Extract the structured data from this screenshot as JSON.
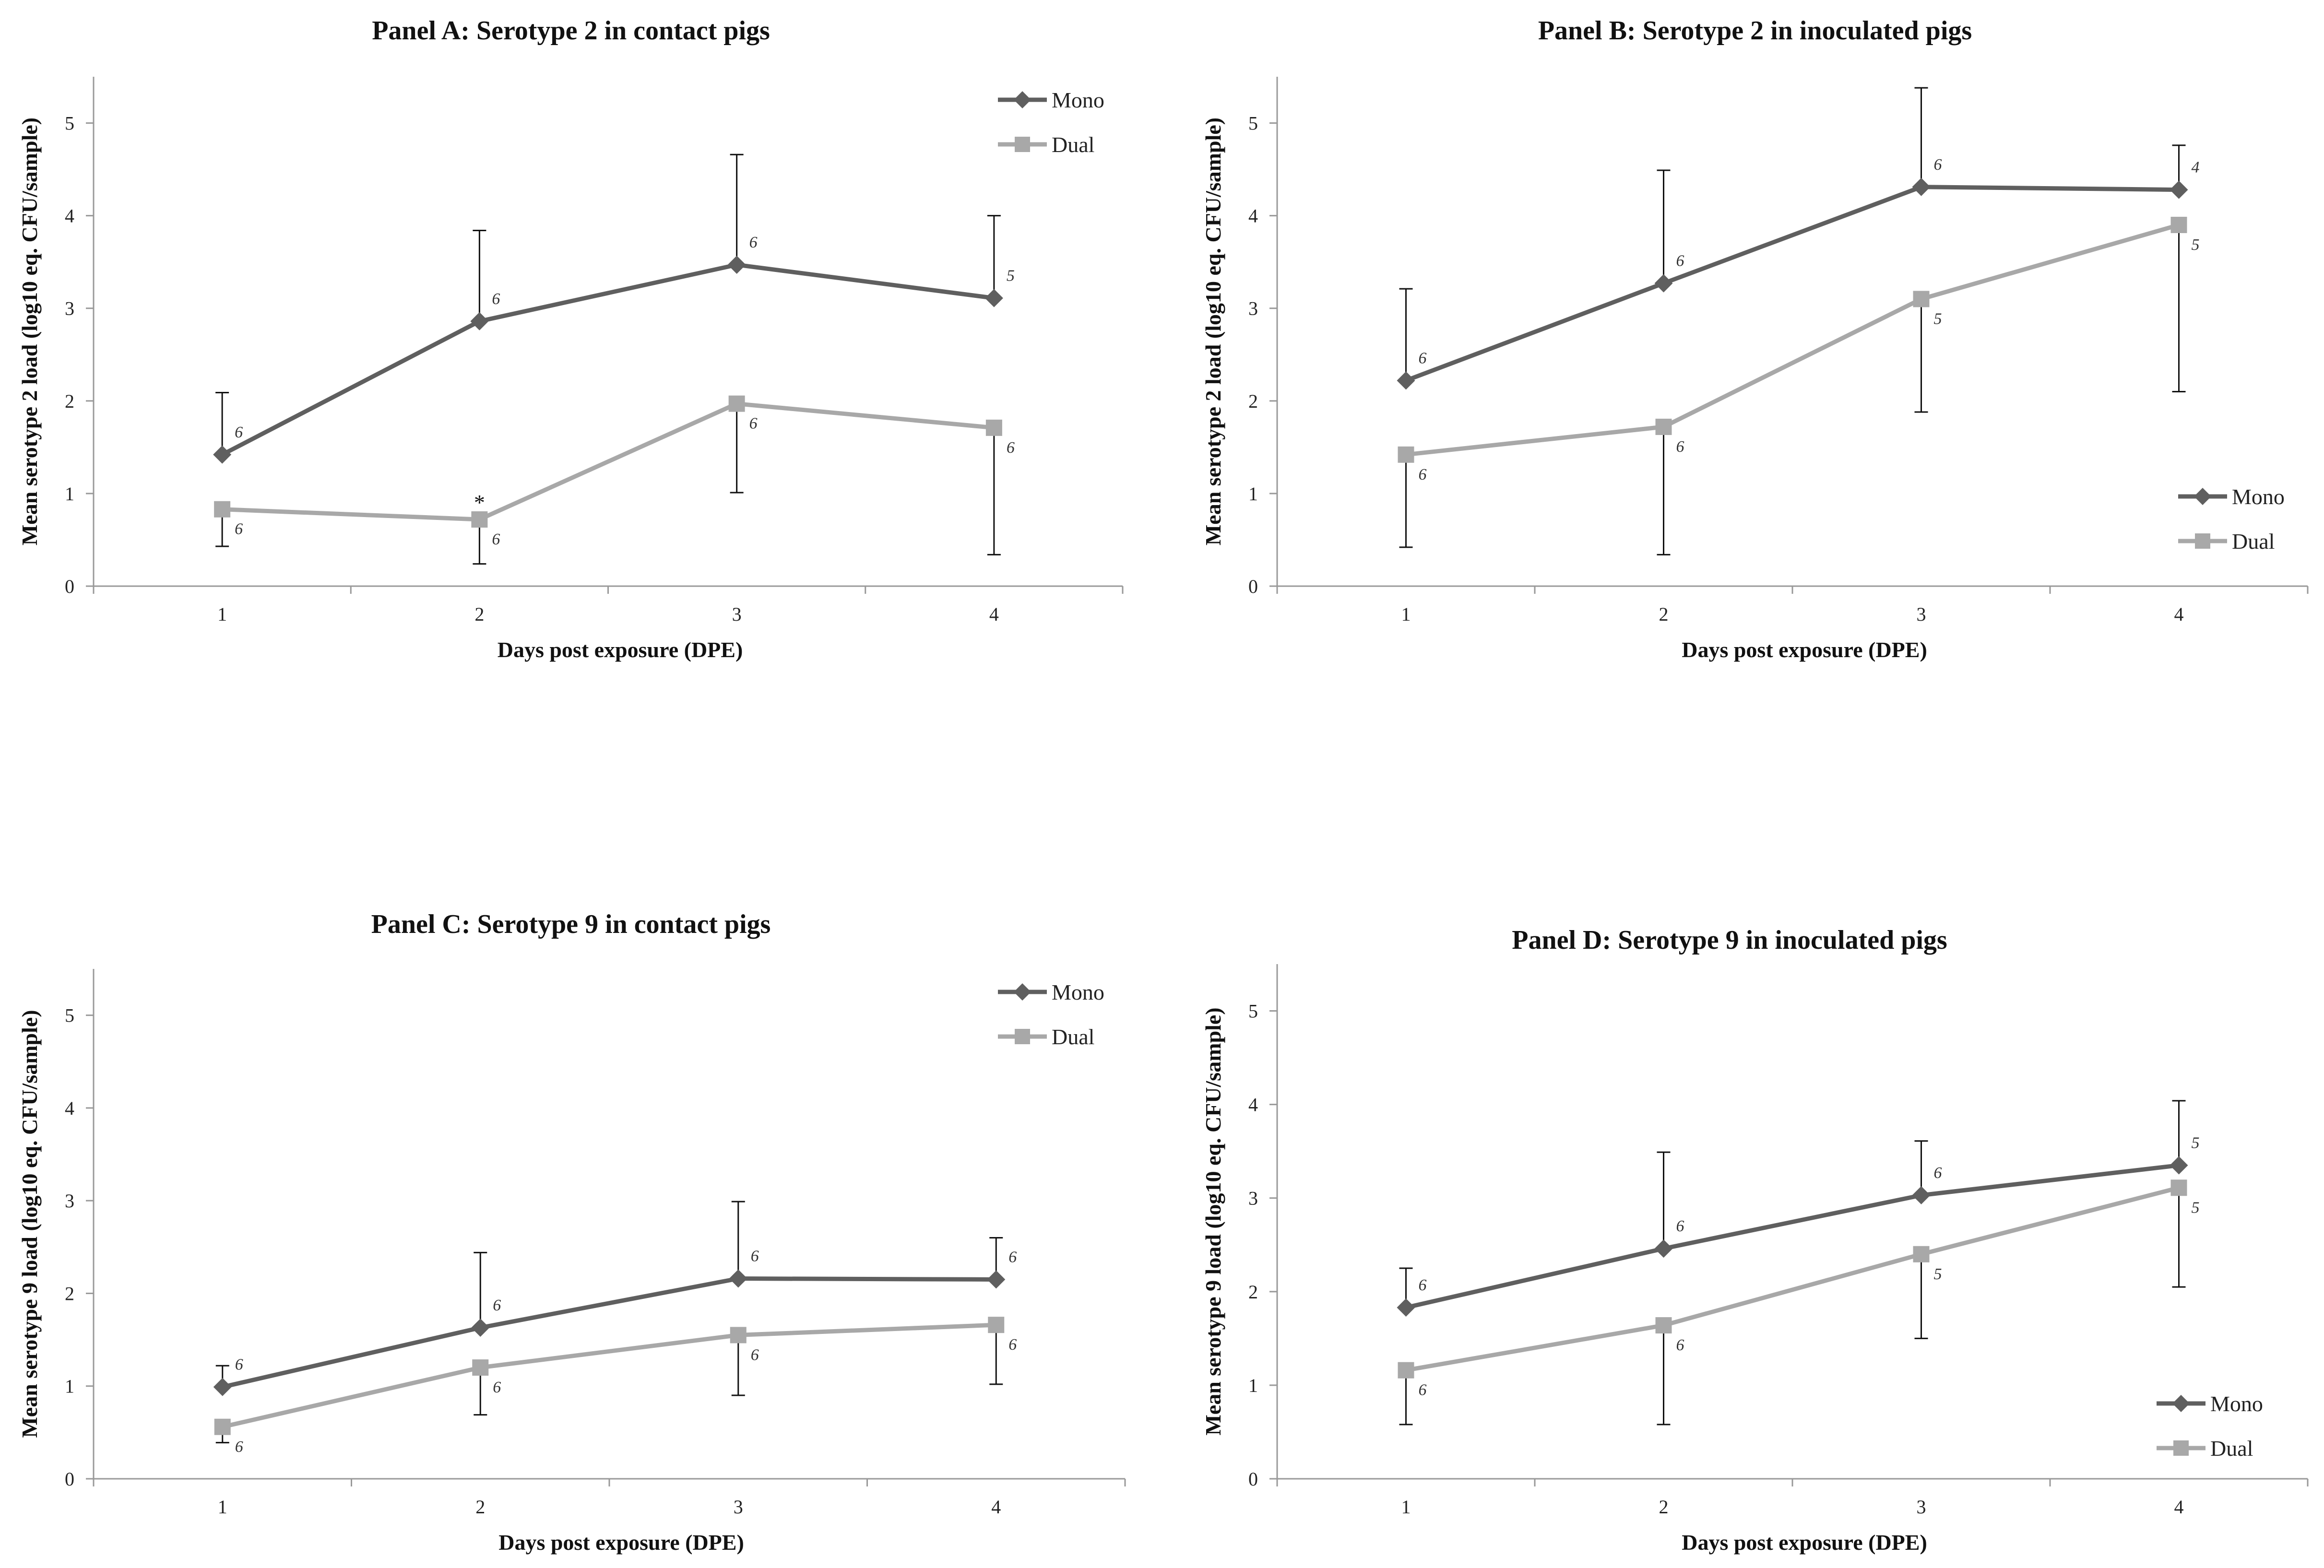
{
  "chart_data": [
    {
      "id": "A",
      "type": "line",
      "title": "Panel A: Serotype 2 in contact pigs",
      "xlabel": "Days post exposure (DPE)",
      "ylabel": "Mean serotype 2 load (log10 eq. CFU/sample)",
      "categories": [
        "1",
        "2",
        "3",
        "4"
      ],
      "yticks": [
        "0",
        "1",
        "2",
        "3",
        "4",
        "5"
      ],
      "ylim": [
        0,
        5.5
      ],
      "legend": "top-right",
      "series": [
        {
          "name": "Mono",
          "color": "#5f5f5f",
          "marker": "diamond",
          "errdir": "up",
          "values": [
            1.42,
            2.86,
            3.47,
            3.11
          ],
          "err": [
            0.67,
            0.98,
            1.19,
            0.89
          ],
          "n": [
            "6",
            "6",
            "6",
            "5"
          ]
        },
        {
          "name": "Dual",
          "color": "#a8a8a8",
          "marker": "square",
          "errdir": "mixed",
          "values": [
            0.83,
            0.72,
            1.97,
            1.71
          ],
          "err": [
            0.4,
            0.48,
            0.96,
            1.37
          ],
          "errsign": [
            -1,
            -1,
            -1,
            -1
          ],
          "n": [
            "6",
            "6",
            "6",
            "6"
          ]
        }
      ],
      "annotations": [
        {
          "text": "*",
          "x": "2",
          "y": 0.98
        }
      ]
    },
    {
      "id": "B",
      "type": "line",
      "title": "Panel B: Serotype 2 in inoculated pigs",
      "xlabel": "Days post exposure (DPE)",
      "ylabel": "Mean serotype 2 load (log10 eq. CFU/sample)",
      "categories": [
        "1",
        "2",
        "3",
        "4"
      ],
      "yticks": [
        "0",
        "1",
        "2",
        "3",
        "4",
        "5"
      ],
      "ylim": [
        0,
        5.5
      ],
      "legend": "bottom-right",
      "series": [
        {
          "name": "Mono",
          "color": "#5f5f5f",
          "marker": "diamond",
          "errdir": "up",
          "values": [
            2.22,
            3.27,
            4.31,
            4.28
          ],
          "err": [
            0.99,
            1.22,
            1.07,
            0.48
          ],
          "n": [
            "6",
            "6",
            "6",
            "4"
          ]
        },
        {
          "name": "Dual",
          "color": "#a8a8a8",
          "marker": "square",
          "errdir": "down",
          "values": [
            1.42,
            1.72,
            3.1,
            3.9
          ],
          "err": [
            1.0,
            1.38,
            1.22,
            1.8
          ],
          "n": [
            "6",
            "6",
            "5",
            "5"
          ]
        }
      ],
      "annotations": []
    },
    {
      "id": "C",
      "type": "line",
      "title": "Panel C: Serotype 9 in contact pigs",
      "xlabel": "Days post exposure (DPE)",
      "ylabel": "Mean serotype 9 load (log10 eq. CFU/sample)",
      "categories": [
        "1",
        "2",
        "3",
        "4"
      ],
      "yticks": [
        "0",
        "1",
        "2",
        "3",
        "4",
        "5"
      ],
      "ylim": [
        0,
        5.5
      ],
      "legend": "top-right",
      "series": [
        {
          "name": "Mono",
          "color": "#5f5f5f",
          "marker": "diamond",
          "errdir": "up",
          "values": [
            0.99,
            1.63,
            2.16,
            2.15
          ],
          "err": [
            0.23,
            0.81,
            0.83,
            0.45
          ],
          "n": [
            "6",
            "6",
            "6",
            "6"
          ]
        },
        {
          "name": "Dual",
          "color": "#a8a8a8",
          "marker": "square",
          "errdir": "down",
          "values": [
            0.56,
            1.2,
            1.55,
            1.66
          ],
          "err": [
            0.17,
            0.51,
            0.65,
            0.64
          ],
          "n": [
            "6",
            "6",
            "6",
            "6"
          ]
        }
      ],
      "annotations": []
    },
    {
      "id": "D",
      "type": "line",
      "title": "Panel D: Serotype 9 in inoculated pigs",
      "xlabel": "Days post exposure (DPE)",
      "ylabel": "Mean serotype 9 load (log10 eq. CFU/sample)",
      "categories": [
        "1",
        "2",
        "3",
        "4"
      ],
      "yticks": [
        "0",
        "1",
        "2",
        "3",
        "4",
        "5"
      ],
      "ylim": [
        0,
        5.5
      ],
      "legend": "bottom-right",
      "series": [
        {
          "name": "Mono",
          "color": "#5f5f5f",
          "marker": "diamond",
          "errdir": "up",
          "values": [
            1.83,
            2.46,
            3.03,
            3.35
          ],
          "err": [
            0.42,
            1.03,
            0.58,
            0.69
          ],
          "n": [
            "6",
            "6",
            "6",
            "5"
          ]
        },
        {
          "name": "Dual",
          "color": "#a8a8a8",
          "marker": "square",
          "errdir": "down",
          "values": [
            1.16,
            1.64,
            2.4,
            3.11
          ],
          "err": [
            0.58,
            1.06,
            0.9,
            1.06
          ],
          "n": [
            "6",
            "6",
            "5",
            "5"
          ]
        }
      ],
      "annotations": []
    }
  ]
}
